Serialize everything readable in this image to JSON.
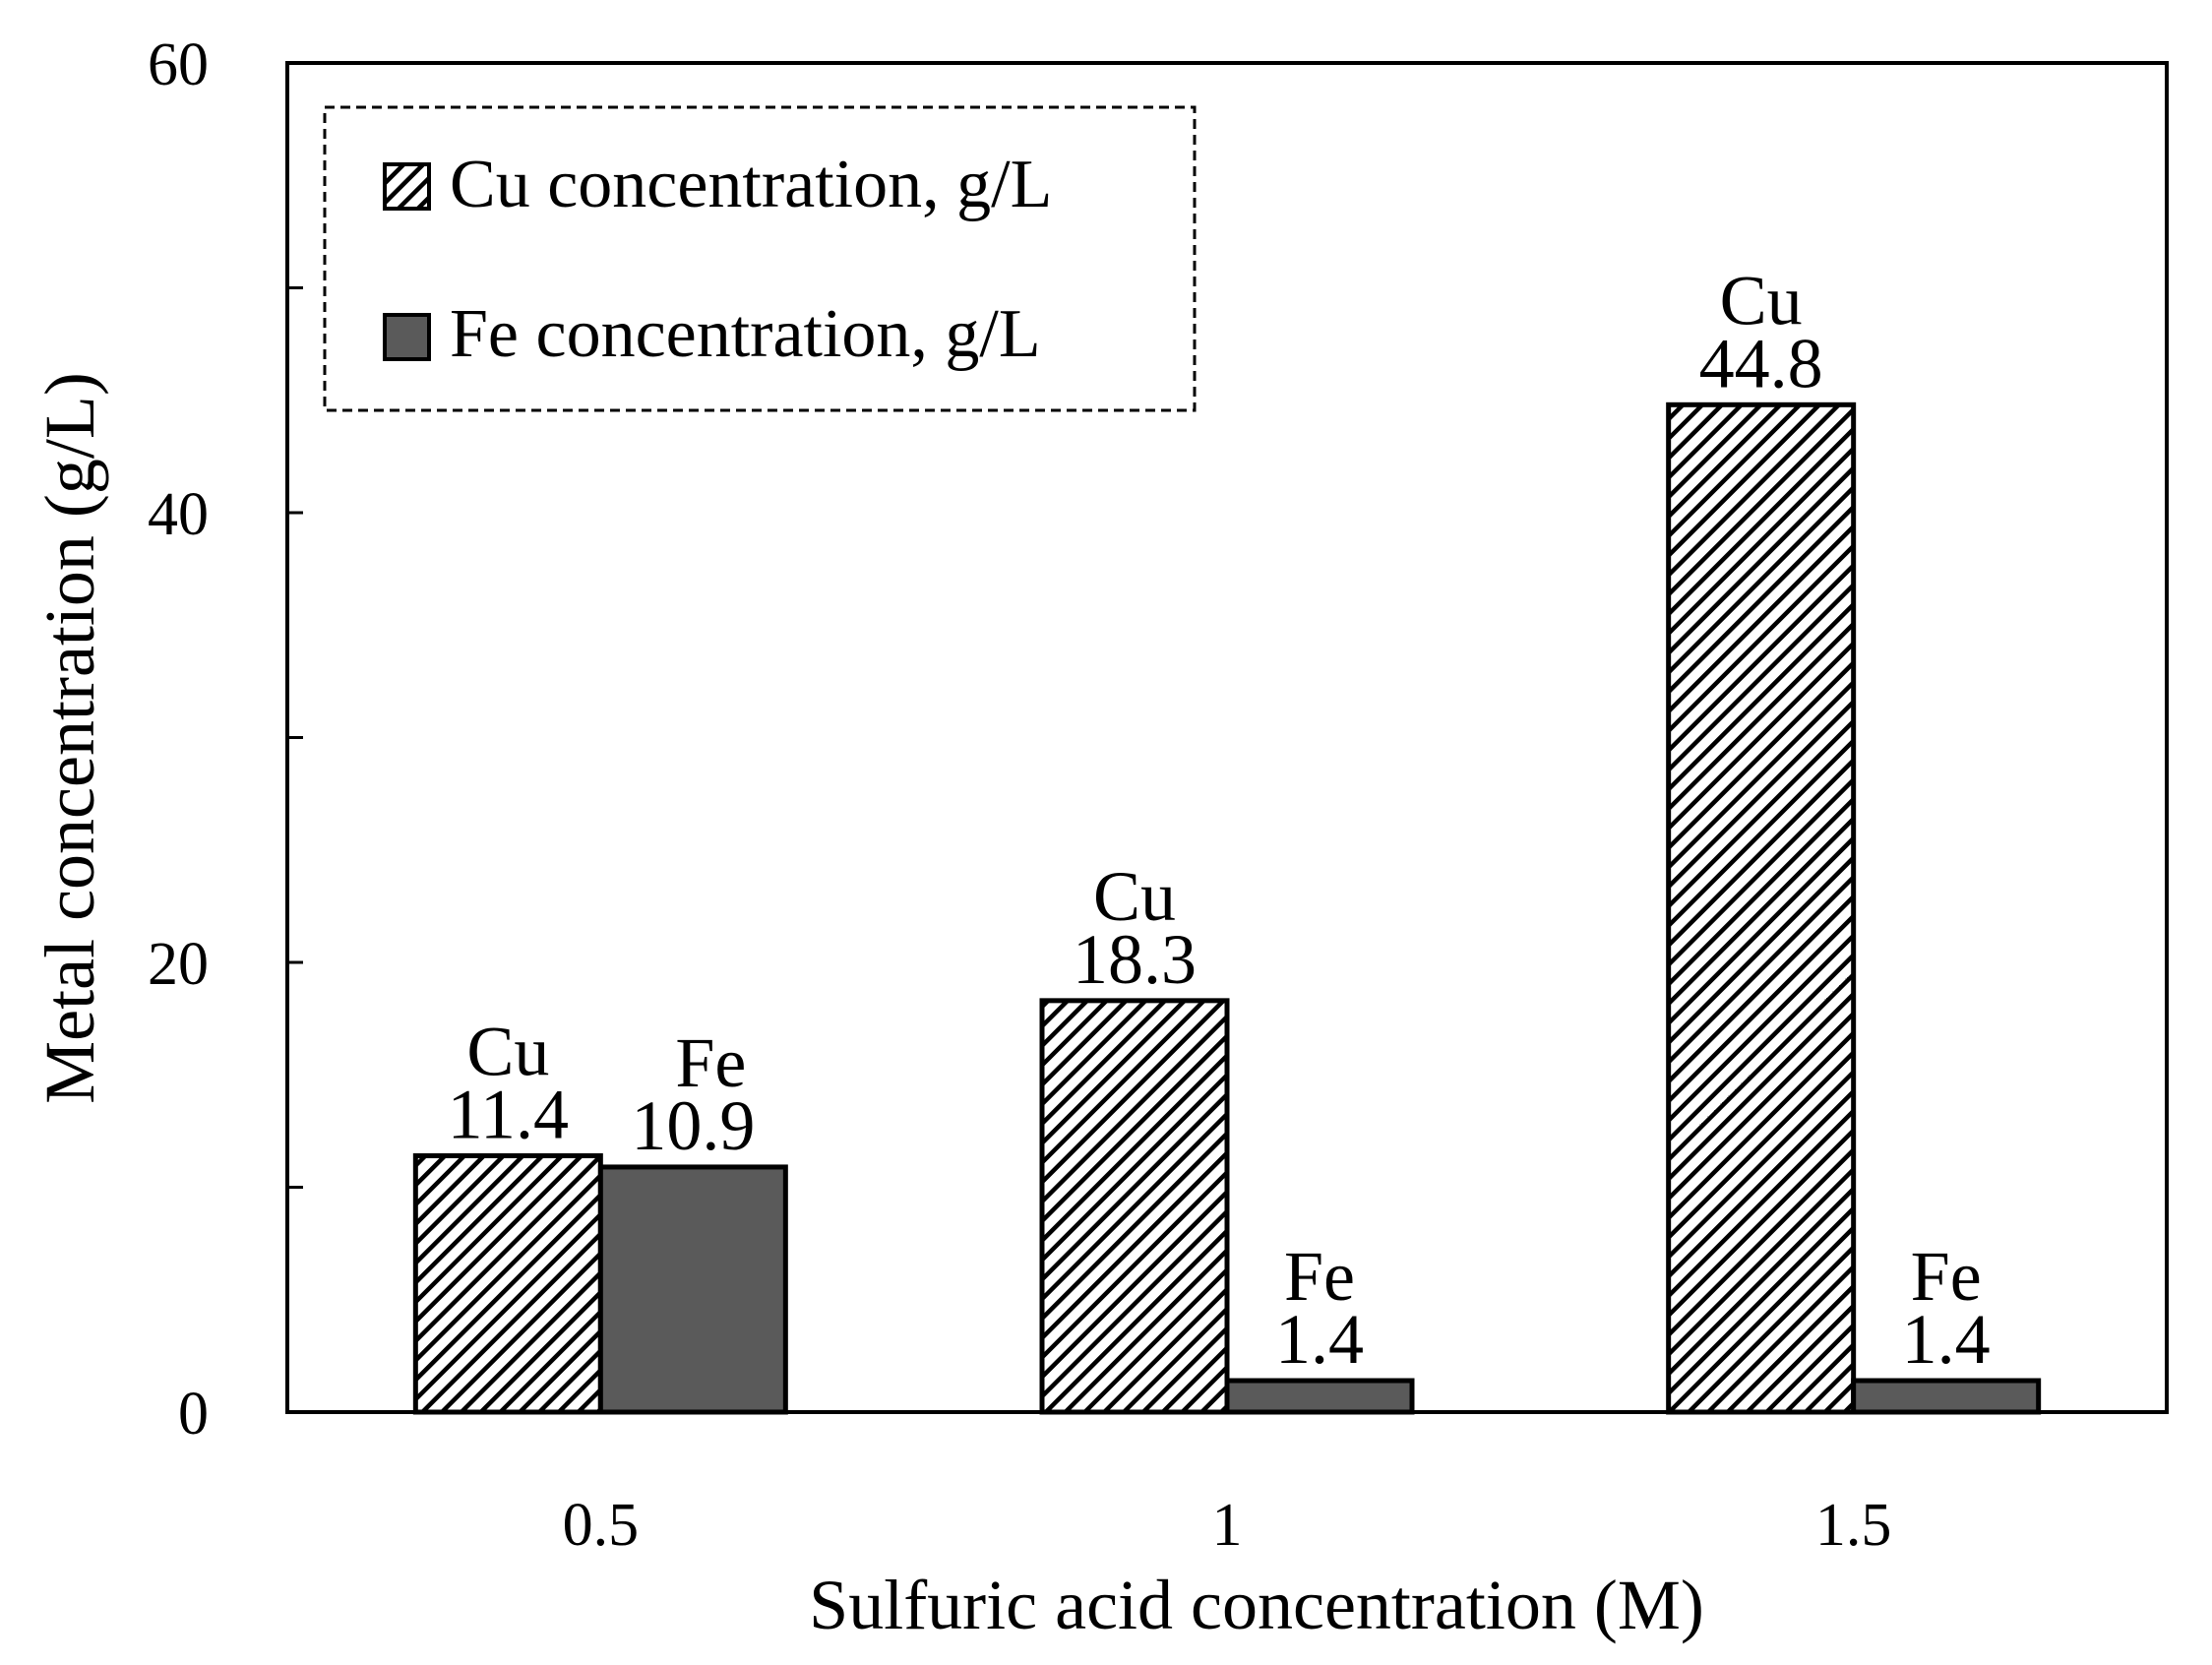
{
  "chart_data": {
    "type": "bar",
    "title": "",
    "xlabel": "Sulfuric acid concentration (M)",
    "ylabel": "Metal concentration (g/L)",
    "categories": [
      "0.5",
      "1",
      "1.5"
    ],
    "ylim": [
      0,
      60
    ],
    "y_ticks": [
      "0",
      "20",
      "40",
      "60"
    ],
    "grid": false,
    "legend_position": "top-left",
    "series": [
      {
        "name": "Cu concentration, g/L",
        "short_label": "Cu",
        "values": [
          11.4,
          18.3,
          44.8
        ],
        "value_labels": [
          "11.4",
          "18.3",
          "44.8"
        ],
        "pattern": "diagonal-hatch",
        "color": "#000000"
      },
      {
        "name": "Fe concentration, g/L",
        "short_label": "Fe",
        "values": [
          10.9,
          1.4,
          1.4
        ],
        "value_labels": [
          "10.9",
          "1.4",
          "1.4"
        ],
        "pattern": "solid",
        "color": "#5a5a5a"
      }
    ]
  }
}
